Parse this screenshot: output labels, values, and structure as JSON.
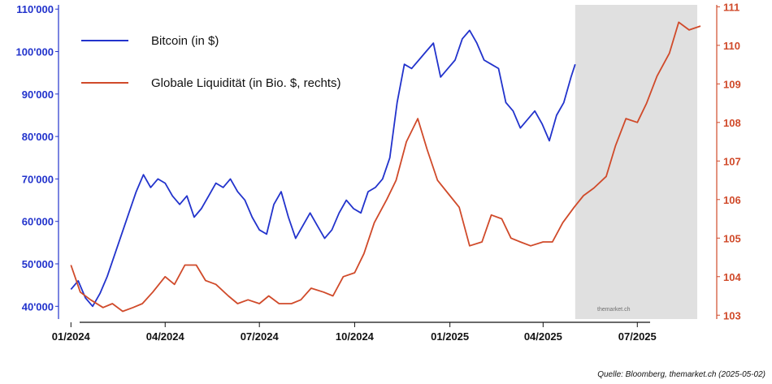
{
  "chart_data": {
    "type": "line",
    "title": "",
    "xlabel": "",
    "ylabel_left": "",
    "ylabel_right": "",
    "x_tick_labels": [
      "01/2024",
      "04/2024",
      "07/2024",
      "10/2024",
      "01/2025",
      "04/2025",
      "07/2025"
    ],
    "y_left": {
      "ylim": [
        37000,
        111000
      ],
      "tick_values": [
        40000,
        50000,
        60000,
        70000,
        80000,
        90000,
        100000,
        110000
      ],
      "tick_labels": [
        "40'000",
        "50'000",
        "60'000",
        "70'000",
        "80'000",
        "90'000",
        "100'000",
        "110'000"
      ],
      "color": "#2233cc"
    },
    "y_right": {
      "ylim": [
        102.9,
        111.05
      ],
      "tick_values": [
        103,
        104,
        105,
        106,
        107,
        108,
        109,
        110,
        111
      ],
      "tick_labels": [
        "103",
        "104",
        "105",
        "106",
        "107",
        "108",
        "109",
        "110",
        "111"
      ],
      "color": "#d04a2a"
    },
    "shaded_period": {
      "start": "2025-05-02",
      "end": "2025-08-31",
      "color": "#e0e0e0"
    },
    "legend": {
      "placement": "top-left",
      "entries": [
        "Bitcoin (in $)",
        "Globale Liquidität (in Bio. $, rechts)"
      ]
    },
    "series": [
      {
        "name": "Bitcoin (in $)",
        "axis": "left",
        "color": "#2233cc",
        "x": [
          "2024-01-01",
          "2024-01-08",
          "2024-01-15",
          "2024-01-22",
          "2024-01-29",
          "2024-02-05",
          "2024-02-12",
          "2024-02-19",
          "2024-02-26",
          "2024-03-04",
          "2024-03-11",
          "2024-03-18",
          "2024-03-25",
          "2024-04-01",
          "2024-04-08",
          "2024-04-15",
          "2024-04-22",
          "2024-04-29",
          "2024-05-06",
          "2024-05-13",
          "2024-05-20",
          "2024-05-27",
          "2024-06-03",
          "2024-06-10",
          "2024-06-17",
          "2024-06-24",
          "2024-07-01",
          "2024-07-08",
          "2024-07-15",
          "2024-07-22",
          "2024-07-29",
          "2024-08-05",
          "2024-08-12",
          "2024-08-19",
          "2024-08-26",
          "2024-09-02",
          "2024-09-09",
          "2024-09-16",
          "2024-09-23",
          "2024-09-30",
          "2024-10-07",
          "2024-10-14",
          "2024-10-21",
          "2024-10-28",
          "2024-11-04",
          "2024-11-11",
          "2024-11-18",
          "2024-11-25",
          "2024-12-02",
          "2024-12-09",
          "2024-12-16",
          "2024-12-23",
          "2024-12-30",
          "2025-01-06",
          "2025-01-13",
          "2025-01-20",
          "2025-01-27",
          "2025-02-03",
          "2025-02-10",
          "2025-02-17",
          "2025-02-24",
          "2025-03-03",
          "2025-03-10",
          "2025-03-17",
          "2025-03-24",
          "2025-03-31",
          "2025-04-07",
          "2025-04-14",
          "2025-04-21",
          "2025-04-28",
          "2025-05-02"
        ],
        "values": [
          44000,
          46000,
          42000,
          40000,
          43000,
          47000,
          52000,
          57000,
          62000,
          67000,
          71000,
          68000,
          70000,
          69000,
          66000,
          64000,
          66000,
          61000,
          63000,
          66000,
          69000,
          68000,
          70000,
          67000,
          65000,
          61000,
          58000,
          57000,
          64000,
          67000,
          61000,
          56000,
          59000,
          62000,
          59000,
          56000,
          58000,
          62000,
          65000,
          63000,
          62000,
          67000,
          68000,
          70000,
          75000,
          88000,
          97000,
          96000,
          98000,
          100000,
          102000,
          94000,
          96000,
          98000,
          103000,
          105000,
          102000,
          98000,
          97000,
          96000,
          88000,
          86000,
          82000,
          84000,
          86000,
          83000,
          79000,
          85000,
          88000,
          94000,
          97000
        ]
      },
      {
        "name": "Globale Liquidität (in Bio. $, rechts)",
        "axis": "right",
        "color": "#d04a2a",
        "x": [
          "2024-01-01",
          "2024-01-10",
          "2024-01-20",
          "2024-02-01",
          "2024-02-10",
          "2024-02-20",
          "2024-03-01",
          "2024-03-10",
          "2024-03-20",
          "2024-04-01",
          "2024-04-10",
          "2024-04-20",
          "2024-05-01",
          "2024-05-10",
          "2024-05-20",
          "2024-06-01",
          "2024-06-10",
          "2024-06-20",
          "2024-07-01",
          "2024-07-10",
          "2024-07-20",
          "2024-08-01",
          "2024-08-10",
          "2024-08-20",
          "2024-09-01",
          "2024-09-10",
          "2024-09-20",
          "2024-10-01",
          "2024-10-10",
          "2024-10-20",
          "2024-11-01",
          "2024-11-10",
          "2024-11-20",
          "2024-12-01",
          "2024-12-10",
          "2024-12-20",
          "2025-01-01",
          "2025-01-10",
          "2025-01-20",
          "2025-02-01",
          "2025-02-10",
          "2025-02-20",
          "2025-03-01",
          "2025-03-10",
          "2025-03-20",
          "2025-04-01",
          "2025-04-10",
          "2025-04-20",
          "2025-05-01",
          "2025-05-10",
          "2025-05-20",
          "2025-06-01",
          "2025-06-10",
          "2025-06-20",
          "2025-07-01",
          "2025-07-10",
          "2025-07-20",
          "2025-08-01",
          "2025-08-10",
          "2025-08-20",
          "2025-08-31"
        ],
        "values": [
          104.3,
          103.6,
          103.4,
          103.2,
          103.3,
          103.1,
          103.2,
          103.3,
          103.6,
          104.0,
          103.8,
          104.3,
          104.3,
          103.9,
          103.8,
          103.5,
          103.3,
          103.4,
          103.3,
          103.5,
          103.3,
          103.3,
          103.4,
          103.7,
          103.6,
          103.5,
          104.0,
          104.1,
          104.6,
          105.4,
          106.0,
          106.5,
          107.5,
          108.1,
          107.3,
          106.5,
          106.1,
          105.8,
          104.8,
          104.9,
          105.6,
          105.5,
          105.0,
          104.9,
          104.8,
          104.9,
          104.9,
          105.4,
          105.8,
          106.1,
          106.3,
          106.6,
          107.4,
          108.1,
          108.0,
          108.5,
          109.2,
          109.8,
          110.6,
          110.4,
          110.5
        ]
      }
    ],
    "annotations": [
      "themarket.ch"
    ],
    "source": "Quelle: Bloomberg, themarket.ch (2025-05-02)"
  }
}
